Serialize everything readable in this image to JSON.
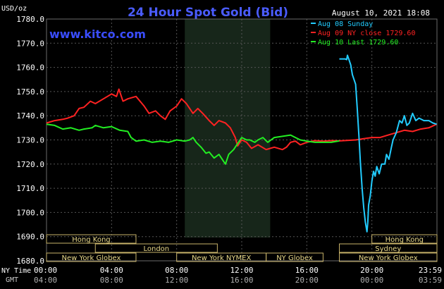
{
  "chart_data": {
    "type": "line",
    "title": "24 Hour Spot Gold (Bid)",
    "unit_label": "USD/oz",
    "datetime": "August 10, 2021 18:08",
    "watermark": "www.kitco.com",
    "ylim": [
      1680,
      1780
    ],
    "y_ticks": [
      "1780.0",
      "1770.0",
      "1760.0",
      "1750.0",
      "1740.0",
      "1730.0",
      "1720.0",
      "1710.0",
      "1700.0",
      "1690.0",
      "1680.0"
    ],
    "x_range_hours": [
      0,
      24
    ],
    "ny_time_label": "NY Time",
    "gmt_label": "GMT",
    "ny_ticks": [
      "00:00",
      "04:00",
      "08:00",
      "12:00",
      "16:00",
      "20:00",
      "23:59"
    ],
    "gmt_ticks": [
      "04:00",
      "08:00",
      "12:00",
      "16:00",
      "20:00",
      "00:00",
      "03:59"
    ],
    "shaded_session_hours": [
      8.5,
      13.75
    ],
    "legend": [
      {
        "label": "Aug 08 Sunday",
        "color": "#22ccff"
      },
      {
        "label": "Aug 09 NY close 1729.60",
        "color": "#ff2222"
      },
      {
        "label": "Aug 10 Last 1729.60",
        "color": "#22ee22"
      }
    ],
    "series": [
      {
        "name": "Aug 08 Sunday",
        "color": "#22ccff",
        "points": [
          [
            18.0,
            1763.5
          ],
          [
            18.35,
            1763.5
          ],
          [
            18.45,
            1763.2
          ],
          [
            18.5,
            1765
          ],
          [
            18.6,
            1763
          ],
          [
            18.7,
            1761
          ],
          [
            18.8,
            1757
          ],
          [
            19.0,
            1753
          ],
          [
            19.1,
            1743
          ],
          [
            19.2,
            1732
          ],
          [
            19.3,
            1720
          ],
          [
            19.4,
            1710
          ],
          [
            19.5,
            1702
          ],
          [
            19.6,
            1696
          ],
          [
            19.7,
            1692
          ],
          [
            19.75,
            1696
          ],
          [
            19.8,
            1703
          ],
          [
            19.9,
            1707
          ],
          [
            20.0,
            1713
          ],
          [
            20.1,
            1717
          ],
          [
            20.2,
            1715
          ],
          [
            20.3,
            1719
          ],
          [
            20.45,
            1716
          ],
          [
            20.6,
            1720
          ],
          [
            20.8,
            1720
          ],
          [
            20.9,
            1724
          ],
          [
            21.05,
            1722
          ],
          [
            21.2,
            1727
          ],
          [
            21.3,
            1730
          ],
          [
            21.5,
            1733
          ],
          [
            21.7,
            1738
          ],
          [
            21.85,
            1737
          ],
          [
            22.0,
            1740
          ],
          [
            22.15,
            1736
          ],
          [
            22.3,
            1737
          ],
          [
            22.5,
            1741
          ],
          [
            22.7,
            1738
          ],
          [
            22.9,
            1739
          ],
          [
            23.2,
            1738
          ],
          [
            23.5,
            1738
          ],
          [
            23.75,
            1737
          ],
          [
            23.98,
            1736.5
          ]
        ]
      },
      {
        "name": "Aug 09 NY close 1729.60",
        "color": "#ff2222",
        "points": [
          [
            0,
            1737
          ],
          [
            0.5,
            1738
          ],
          [
            1.0,
            1738.5
          ],
          [
            1.3,
            1739
          ],
          [
            1.7,
            1740
          ],
          [
            2.0,
            1743
          ],
          [
            2.3,
            1743.5
          ],
          [
            2.7,
            1746
          ],
          [
            3.0,
            1745
          ],
          [
            3.5,
            1747
          ],
          [
            4.0,
            1749
          ],
          [
            4.3,
            1748
          ],
          [
            4.45,
            1751
          ],
          [
            4.7,
            1746
          ],
          [
            5.0,
            1747
          ],
          [
            5.5,
            1748
          ],
          [
            6.0,
            1744
          ],
          [
            6.3,
            1741
          ],
          [
            6.7,
            1742
          ],
          [
            7.0,
            1740
          ],
          [
            7.3,
            1738.5
          ],
          [
            7.6,
            1742
          ],
          [
            8.0,
            1744
          ],
          [
            8.3,
            1747
          ],
          [
            8.6,
            1745
          ],
          [
            9.0,
            1741
          ],
          [
            9.3,
            1743
          ],
          [
            9.6,
            1741
          ],
          [
            10.0,
            1738
          ],
          [
            10.3,
            1736
          ],
          [
            10.6,
            1738
          ],
          [
            11.0,
            1737
          ],
          [
            11.3,
            1735
          ],
          [
            11.6,
            1731
          ],
          [
            11.75,
            1727.5
          ],
          [
            12.0,
            1730
          ],
          [
            12.3,
            1729
          ],
          [
            12.6,
            1726.5
          ],
          [
            13.0,
            1728
          ],
          [
            13.5,
            1726
          ],
          [
            14.0,
            1727
          ],
          [
            14.5,
            1726
          ],
          [
            14.75,
            1727
          ],
          [
            15.0,
            1729
          ],
          [
            15.3,
            1729.5
          ],
          [
            15.6,
            1728
          ],
          [
            16.0,
            1729
          ],
          [
            16.5,
            1729.7
          ],
          [
            17.0,
            1729.5
          ],
          [
            17.5,
            1729.7
          ],
          [
            18.0,
            1729.6
          ],
          [
            19.0,
            1730
          ],
          [
            19.5,
            1730.5
          ],
          [
            20.0,
            1731
          ],
          [
            20.5,
            1731
          ],
          [
            21.0,
            1732
          ],
          [
            21.5,
            1733
          ],
          [
            22.0,
            1734
          ],
          [
            22.5,
            1733.5
          ],
          [
            23.0,
            1734.5
          ],
          [
            23.5,
            1735
          ],
          [
            23.98,
            1736.5
          ]
        ]
      },
      {
        "name": "Aug 10 Last 1729.60",
        "color": "#22ee22",
        "points": [
          [
            0,
            1736.5
          ],
          [
            0.5,
            1736
          ],
          [
            1.0,
            1734.5
          ],
          [
            1.5,
            1735
          ],
          [
            2.0,
            1734
          ],
          [
            2.3,
            1734.5
          ],
          [
            2.8,
            1735
          ],
          [
            3.0,
            1736
          ],
          [
            3.5,
            1735
          ],
          [
            4.0,
            1735.5
          ],
          [
            4.5,
            1734
          ],
          [
            5.0,
            1733.5
          ],
          [
            5.2,
            1731
          ],
          [
            5.5,
            1729.5
          ],
          [
            6.0,
            1730
          ],
          [
            6.5,
            1729
          ],
          [
            7.0,
            1729.5
          ],
          [
            7.5,
            1729
          ],
          [
            8.0,
            1730
          ],
          [
            8.5,
            1729.5
          ],
          [
            8.8,
            1730
          ],
          [
            9.0,
            1731
          ],
          [
            9.2,
            1729
          ],
          [
            9.5,
            1727
          ],
          [
            9.8,
            1724.5
          ],
          [
            10.0,
            1725
          ],
          [
            10.3,
            1722.5
          ],
          [
            10.6,
            1724
          ],
          [
            10.9,
            1721
          ],
          [
            11.0,
            1720
          ],
          [
            11.2,
            1724
          ],
          [
            11.5,
            1726
          ],
          [
            11.8,
            1729
          ],
          [
            12.0,
            1731
          ],
          [
            12.3,
            1730
          ],
          [
            12.5,
            1730
          ],
          [
            12.8,
            1729
          ],
          [
            13.0,
            1730
          ],
          [
            13.3,
            1731
          ],
          [
            13.6,
            1729
          ],
          [
            14.0,
            1731
          ],
          [
            14.5,
            1731.5
          ],
          [
            15.0,
            1732
          ],
          [
            15.3,
            1731
          ],
          [
            15.6,
            1730
          ],
          [
            16.0,
            1729.5
          ],
          [
            16.5,
            1729
          ],
          [
            17.0,
            1729
          ],
          [
            17.5,
            1729
          ],
          [
            18.0,
            1729.6
          ]
        ]
      }
    ],
    "market_sessions": [
      {
        "name": "Hong Kong",
        "row": 1,
        "start": 0.0,
        "end": 5.5
      },
      {
        "name": "London",
        "row": 2,
        "start": 3.0,
        "end": 10.5
      },
      {
        "name": "New York Globex",
        "row": 3,
        "start": 0.0,
        "end": 5.5
      },
      {
        "name": "New York NYMEX",
        "row": 3,
        "start": 8.0,
        "end": 13.5
      },
      {
        "name": "NY Globex",
        "row": 3,
        "start": 13.5,
        "end": 17.0
      },
      {
        "name": "Hong Kong",
        "row": 1,
        "start": 20.0,
        "end": 24.0
      },
      {
        "name": "Sydney",
        "row": 2,
        "start": 18.0,
        "end": 24.0
      },
      {
        "name": "New York Globex",
        "row": 3,
        "start": 18.0,
        "end": 24.0
      }
    ]
  }
}
